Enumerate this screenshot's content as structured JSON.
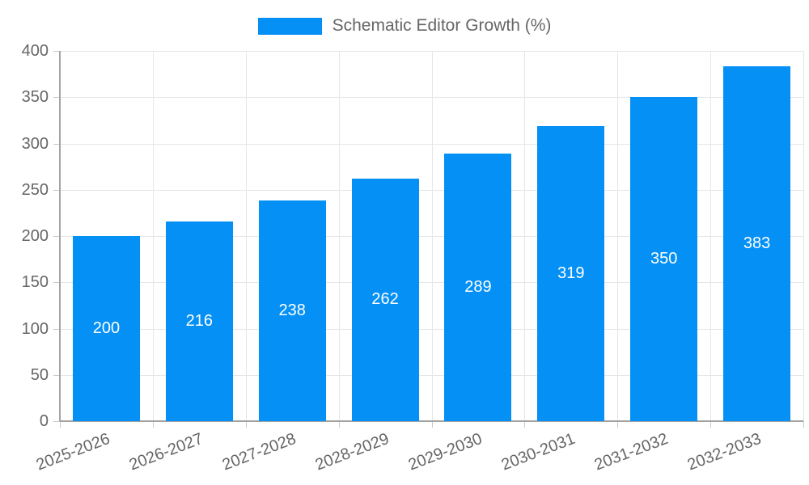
{
  "chart_data": {
    "type": "bar",
    "title": "",
    "legend_label": "Schematic Editor Growth (%)",
    "legend_position": "top",
    "categories": [
      "2025-2026",
      "2026-2027",
      "2027-2028",
      "2028-2029",
      "2029-2030",
      "2030-2031",
      "2031-2032",
      "2032-2033"
    ],
    "values": [
      200,
      216,
      238,
      262,
      289,
      319,
      350,
      383
    ],
    "xlabel": "",
    "ylabel": "",
    "ylim": [
      0,
      400
    ],
    "ytick_step": 50,
    "yticks": [
      0,
      50,
      100,
      150,
      200,
      250,
      300,
      350,
      400
    ],
    "grid": true,
    "value_labels_position": "center-inside",
    "colors": {
      "bar": "#0590f5",
      "value_label": "#ffffff",
      "axis": "#a3a3a3",
      "grid": "#e6e6e6",
      "tick": "#c9c9c9",
      "tick_label": "#666666",
      "legend_text": "#666666",
      "background": "#ffffff"
    }
  }
}
